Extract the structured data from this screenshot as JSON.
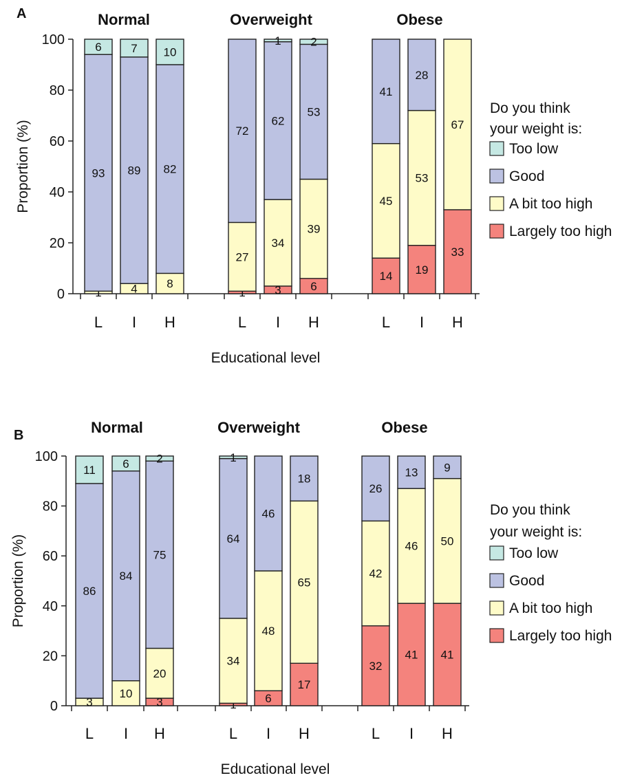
{
  "chart_data": [
    {
      "type": "bar",
      "stacked": true,
      "panel_label": "A",
      "groups": [
        "Normal",
        "Overweight",
        "Obese"
      ],
      "categories": [
        "L",
        "I",
        "H"
      ],
      "xlabel": "Educational level",
      "ylabel": "Proportion (%)",
      "ylim": [
        0,
        100
      ],
      "yticks": [
        "0",
        "20",
        "40",
        "60",
        "80",
        "100"
      ],
      "legend": {
        "title_lines": [
          "Do you think",
          "your weight is:"
        ],
        "placement": "right"
      },
      "series": [
        {
          "name": "Largely too high",
          "color": "#f4837d",
          "values": [
            [
              0,
              0,
              0
            ],
            [
              1,
              3,
              6
            ],
            [
              14,
              19,
              33
            ]
          ]
        },
        {
          "name": "A bit too high",
          "color": "#fefbc8",
          "values": [
            [
              1,
              4,
              8
            ],
            [
              27,
              34,
              39
            ],
            [
              45,
              53,
              67
            ]
          ]
        },
        {
          "name": "Good",
          "color": "#bcc2e2",
          "values": [
            [
              93,
              89,
              82
            ],
            [
              72,
              62,
              53
            ],
            [
              41,
              28,
              0
            ]
          ]
        },
        {
          "name": "Too low",
          "color": "#c5e8e3",
          "values": [
            [
              6,
              7,
              10
            ],
            [
              0,
              1,
              2
            ],
            [
              0,
              0,
              0
            ]
          ]
        }
      ]
    },
    {
      "type": "bar",
      "stacked": true,
      "panel_label": "B",
      "groups": [
        "Normal",
        "Overweight",
        "Obese"
      ],
      "categories": [
        "L",
        "I",
        "H"
      ],
      "xlabel": "Educational level",
      "ylabel": "Proportion (%)",
      "ylim": [
        0,
        100
      ],
      "yticks": [
        "0",
        "20",
        "40",
        "60",
        "80",
        "100"
      ],
      "legend": {
        "title_lines": [
          "Do you think",
          "your weight is:"
        ],
        "placement": "right"
      },
      "series": [
        {
          "name": "Largely too high",
          "color": "#f4837d",
          "values": [
            [
              0,
              0,
              3
            ],
            [
              1,
              6,
              17
            ],
            [
              32,
              41,
              41
            ]
          ]
        },
        {
          "name": "A bit too high",
          "color": "#fefbc8",
          "values": [
            [
              3,
              10,
              20
            ],
            [
              34,
              48,
              65
            ],
            [
              42,
              46,
              50
            ]
          ]
        },
        {
          "name": "Good",
          "color": "#bcc2e2",
          "values": [
            [
              86,
              84,
              75
            ],
            [
              64,
              46,
              18
            ],
            [
              26,
              13,
              9
            ]
          ]
        },
        {
          "name": "Too low",
          "color": "#c5e8e3",
          "values": [
            [
              11,
              6,
              2
            ],
            [
              1,
              0,
              0
            ],
            [
              0,
              0,
              0
            ]
          ]
        }
      ]
    }
  ]
}
